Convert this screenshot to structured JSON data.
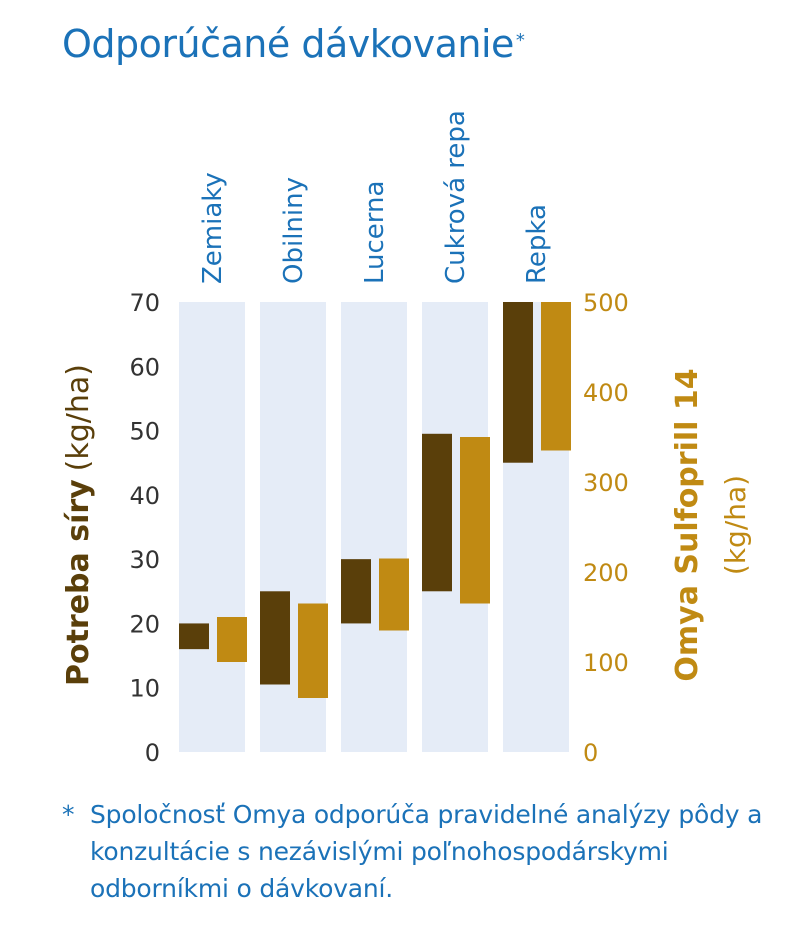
{
  "title": {
    "text": "Odporúčané dávkovanie",
    "marker": "*"
  },
  "footnote": {
    "marker": "*",
    "text": "Spoločnosť Omya odporúča pravidelné analýzy pôdy a konzultácie s nezávislými poľnohospodárskymi odborníkmi o dávkovaní."
  },
  "colors": {
    "title": "#1b72b8",
    "panel": "#e5ecf7",
    "sulfur": "#5a3f0a",
    "product": "#c08a13",
    "axis_text": "#333333"
  },
  "chart_data": {
    "type": "bar",
    "subtype": "floating-range",
    "categories": [
      "Zemiaky",
      "Obilniny",
      "Lucerna",
      "Cukrová repa",
      "Repka"
    ],
    "left_axis": {
      "label_bold": "Potreba síry",
      "label_unit": "(kg/ha)",
      "ticks": [
        "0",
        "10",
        "20",
        "30",
        "40",
        "50",
        "60",
        "70"
      ],
      "range": [
        0,
        70
      ]
    },
    "right_axis": {
      "label_bold": "Omya Sulfoprill 14",
      "label_unit": "(kg/ha)",
      "ticks": [
        "0",
        "100",
        "200",
        "300",
        "400",
        "500"
      ],
      "range": [
        0,
        500
      ]
    },
    "series": [
      {
        "axis": "left",
        "ranges": [
          [
            16,
            20
          ],
          [
            10.5,
            25
          ],
          [
            20,
            30
          ],
          [
            25,
            49.5
          ],
          [
            45,
            70
          ]
        ]
      },
      {
        "axis": "right",
        "ranges": [
          [
            100,
            150
          ],
          [
            60,
            165
          ],
          [
            135,
            215
          ],
          [
            165,
            350
          ],
          [
            335,
            500
          ]
        ]
      }
    ]
  }
}
